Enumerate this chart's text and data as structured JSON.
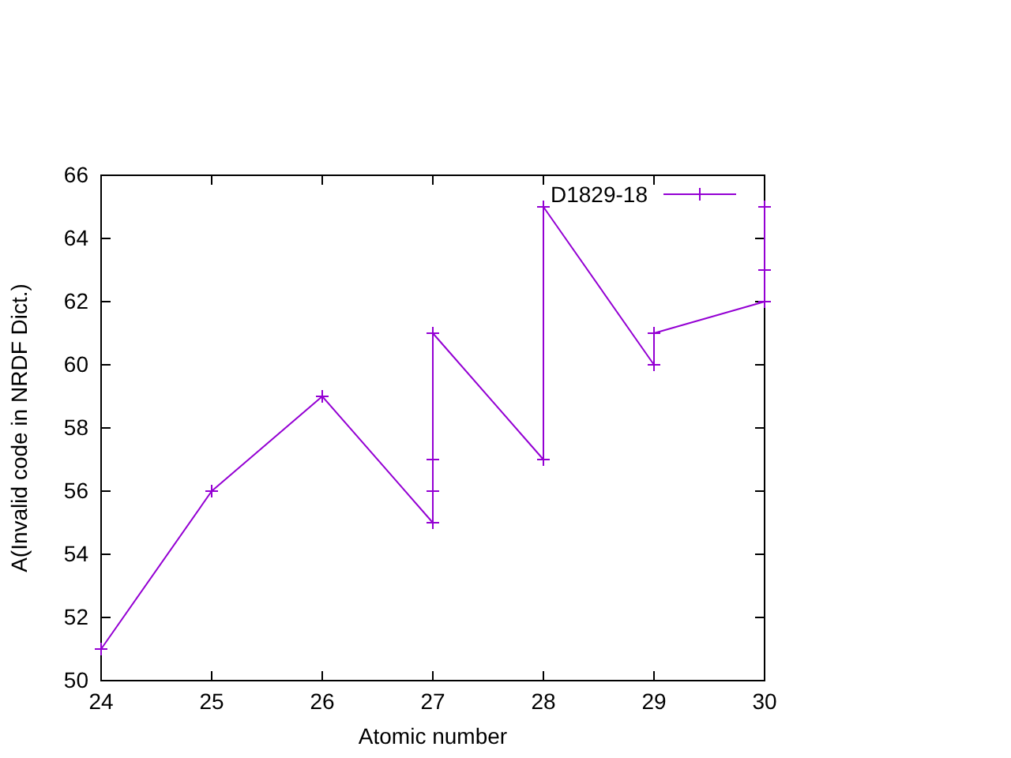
{
  "chart_data": {
    "type": "line",
    "xlabel": "Atomic number",
    "ylabel": "A(Invalid code in NRDF Dict.)",
    "xlim": [
      24,
      30
    ],
    "xticks": [
      24,
      25,
      26,
      27,
      28,
      29,
      30
    ],
    "ylim": [
      50,
      66
    ],
    "yticks": [
      50,
      52,
      54,
      56,
      58,
      60,
      62,
      64,
      66
    ],
    "series": [
      {
        "name": "D1829-18",
        "color": "#9400d3",
        "x": [
          24,
          25,
          26,
          27,
          27,
          27,
          27,
          28,
          28,
          29,
          29,
          30,
          30,
          30
        ],
        "values": [
          51,
          56,
          59,
          55,
          56,
          57,
          61,
          57,
          65,
          60,
          61,
          62,
          63,
          65
        ]
      }
    ],
    "marker": "cross",
    "line_style": "solid",
    "legend": "top right",
    "grid": false
  }
}
